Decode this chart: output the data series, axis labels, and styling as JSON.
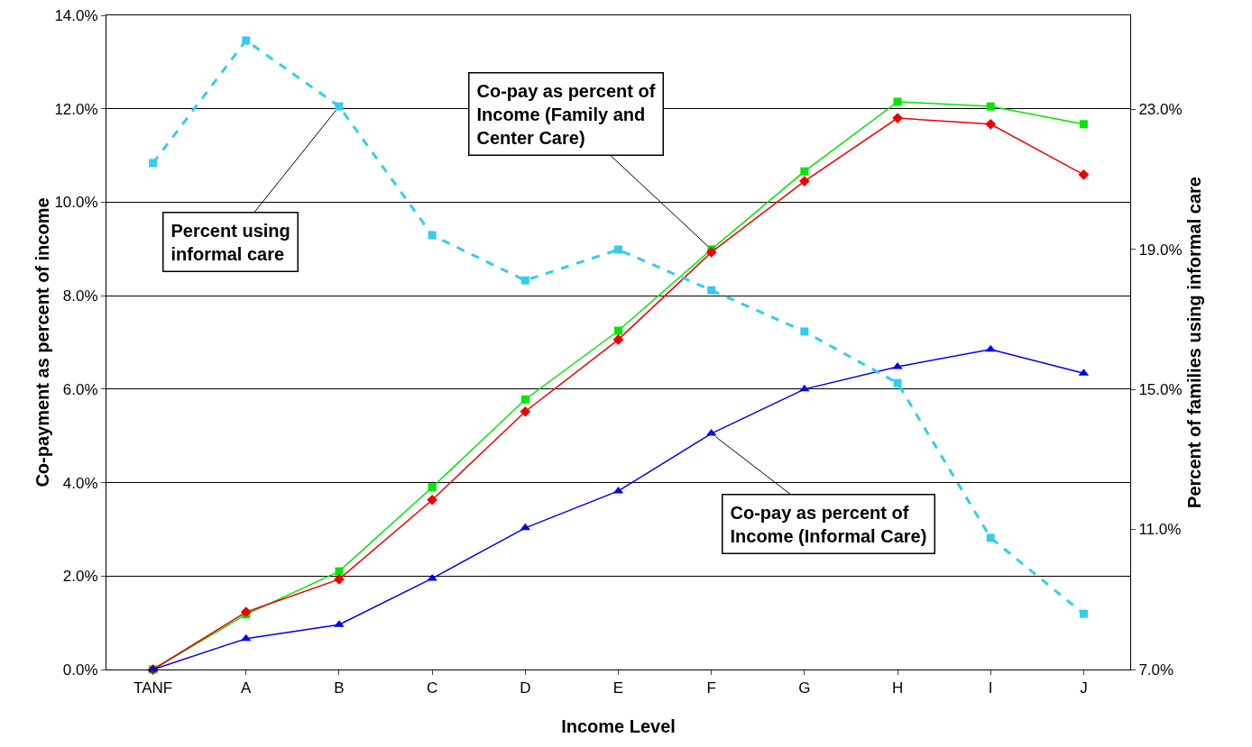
{
  "chart_data": {
    "type": "line",
    "xlabel": "Income Level",
    "ylabel": "Co-payment as percent of income",
    "y2label": "Percent of families using informal care",
    "categories": [
      "TANF",
      "A",
      "B",
      "C",
      "D",
      "E",
      "F",
      "G",
      "H",
      "I",
      "J"
    ],
    "series": [
      {
        "color": "#00e600",
        "marker": "square",
        "line_style": "solid",
        "values": [
          0,
          1.18,
          2.1,
          3.9,
          5.78,
          7.25,
          8.99,
          10.66,
          12.15,
          12.05,
          11.67
        ]
      },
      {
        "color": "#ee0000",
        "marker": "diamond",
        "line_style": "solid",
        "values": [
          0,
          1.23,
          1.93,
          3.63,
          5.52,
          7.06,
          8.93,
          10.45,
          11.8,
          11.67,
          10.59
        ]
      },
      {
        "color": "#0000ee",
        "marker": "triangle",
        "line_style": "solid",
        "values": [
          0,
          0.66,
          0.96,
          1.95,
          3.03,
          3.82,
          5.05,
          6.0,
          6.48,
          6.85,
          6.34
        ]
      },
      {
        "color": "#33ccee",
        "marker": "square",
        "line_style": "dashed",
        "axis": "y2",
        "values": [
          21.46,
          24.96,
          23.08,
          19.4,
          18.11,
          18.99,
          17.83,
          16.65,
          15.18,
          10.76,
          8.59
        ]
      }
    ],
    "ylim": [
      0,
      14
    ],
    "yticks": [
      {
        "value": 0,
        "label": "0.0%"
      },
      {
        "value": 2,
        "label": "2.0%"
      },
      {
        "value": 4,
        "label": "4.0%"
      },
      {
        "value": 6,
        "label": "6.0%"
      },
      {
        "value": 8,
        "label": "8.0%"
      },
      {
        "value": 10,
        "label": "10.0%"
      },
      {
        "value": 12,
        "label": "12.0%"
      },
      {
        "value": 14,
        "label": "14.0%"
      }
    ],
    "y2lim": [
      7,
      25.68
    ],
    "y2ticks": [
      {
        "value": 7,
        "label": "7.0%"
      },
      {
        "value": 11,
        "label": "11.0%"
      },
      {
        "value": 15,
        "label": "15.0%"
      },
      {
        "value": 19,
        "label": "19.0%"
      },
      {
        "value": 23,
        "label": "23.0%"
      }
    ],
    "grid": "y",
    "annotations": [
      {
        "text": "Co-pay as percent of Income (Family and Center Care)",
        "x": "F",
        "y": 8.99
      },
      {
        "text": "Percent using informal care",
        "x": "B",
        "y": 12.05
      },
      {
        "text": "Co-pay as percent of Income (Informal Care)",
        "x": "F",
        "y": 5.05
      }
    ]
  }
}
